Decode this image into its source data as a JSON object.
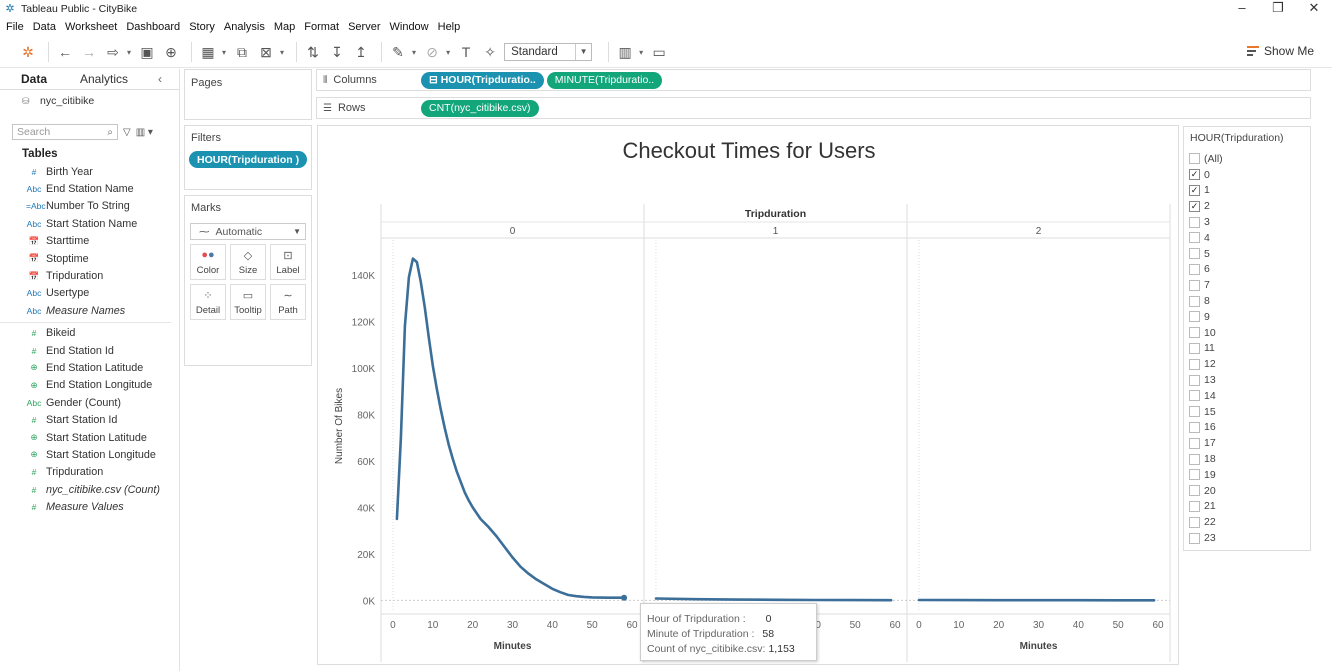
{
  "window": {
    "title": "Tableau Public - CityBike",
    "controls": [
      "–",
      "❐",
      "✕"
    ]
  },
  "menu": [
    "File",
    "Data",
    "Worksheet",
    "Dashboard",
    "Story",
    "Analysis",
    "Map",
    "Format",
    "Server",
    "Window",
    "Help"
  ],
  "toolbar": {
    "fit_value": "Standard",
    "show_me_label": "Show Me"
  },
  "data_panel": {
    "tab_data": "Data",
    "tab_analytics": "Analytics",
    "datasource": "nyc_citibike",
    "search_placeholder": "Search",
    "tables_heading": "Tables",
    "dimensions": [
      {
        "icon": "#",
        "name": "Birth Year",
        "type": "dim"
      },
      {
        "icon": "Abc",
        "name": "End Station Name",
        "type": "dim"
      },
      {
        "icon": "=Abc",
        "name": "Number To String",
        "type": "dim"
      },
      {
        "icon": "Abc",
        "name": "Start Station Name",
        "type": "dim"
      },
      {
        "icon": "📅",
        "name": "Starttime",
        "type": "dim"
      },
      {
        "icon": "📅",
        "name": "Stoptime",
        "type": "dim"
      },
      {
        "icon": "📅",
        "name": "Tripduration",
        "type": "dim"
      },
      {
        "icon": "Abc",
        "name": "Usertype",
        "type": "dim"
      },
      {
        "icon": "Abc",
        "name": "Measure Names",
        "type": "dim",
        "italic": true
      }
    ],
    "measures": [
      {
        "icon": "#",
        "name": "Bikeid",
        "type": "mea"
      },
      {
        "icon": "#",
        "name": "End Station Id",
        "type": "mea"
      },
      {
        "icon": "⊕",
        "name": "End Station Latitude",
        "type": "mea"
      },
      {
        "icon": "⊕",
        "name": "End Station Longitude",
        "type": "mea"
      },
      {
        "icon": "Abc",
        "name": "Gender (Count)",
        "type": "mea"
      },
      {
        "icon": "#",
        "name": "Start Station Id",
        "type": "mea"
      },
      {
        "icon": "⊕",
        "name": "Start Station Latitude",
        "type": "mea"
      },
      {
        "icon": "⊕",
        "name": "Start Station Longitude",
        "type": "mea"
      },
      {
        "icon": "#",
        "name": "Tripduration",
        "type": "mea"
      },
      {
        "icon": "#",
        "name": "nyc_citibike.csv (Count)",
        "type": "mea",
        "italic": true
      },
      {
        "icon": "#",
        "name": "Measure Values",
        "type": "mea",
        "italic": true
      }
    ]
  },
  "cards": {
    "pages_title": "Pages",
    "filters_title": "Filters",
    "filter_pill": "HOUR(Tripduration )",
    "marks_title": "Marks",
    "marks_type": "Automatic",
    "mark_buttons": [
      {
        "name": "color",
        "label": "Color"
      },
      {
        "name": "size",
        "label": "Size"
      },
      {
        "name": "label",
        "label": "Label"
      },
      {
        "name": "detail",
        "label": "Detail"
      },
      {
        "name": "tooltip",
        "label": "Tooltip"
      },
      {
        "name": "path",
        "label": "Path"
      }
    ]
  },
  "shelves": {
    "columns_label": "Columns",
    "rows_label": "Rows",
    "columns_pills": [
      "⊟ HOUR(Tripduratio..",
      "MINUTE(Tripduratio.."
    ],
    "rows_pills": [
      "CNT(nyc_citibike.csv)"
    ]
  },
  "chart_data": {
    "type": "line",
    "title": "Checkout Times for Users",
    "header_title": "Tripduration",
    "panes": [
      "0",
      "1",
      "2"
    ],
    "xlabel": "Minutes",
    "ylabel": "Number Of Bikes",
    "x_ticks": [
      0,
      10,
      20,
      30,
      40,
      50,
      60
    ],
    "xlim": [
      -3,
      63
    ],
    "y_ticks": [
      0,
      20000,
      40000,
      60000,
      80000,
      100000,
      120000,
      140000
    ],
    "y_tick_labels": [
      "0K",
      "20K",
      "40K",
      "60K",
      "80K",
      "100K",
      "120K",
      "140K"
    ],
    "ylim": [
      -5000,
      155000
    ],
    "line_color": "#3b6e98",
    "series": [
      {
        "pane": "0",
        "x": [
          1,
          2,
          3,
          4,
          5,
          6,
          7,
          8,
          9,
          10,
          11,
          12,
          13,
          14,
          15,
          16,
          17,
          18,
          19,
          20,
          22,
          24,
          26,
          28,
          30,
          32,
          34,
          36,
          38,
          40,
          42,
          44,
          46,
          48,
          50,
          52,
          54,
          56,
          58
        ],
        "y": [
          35000,
          70000,
          118000,
          139000,
          147000,
          145500,
          137000,
          126000,
          113000,
          101000,
          91000,
          82000,
          74000,
          67000,
          61000,
          55500,
          51000,
          46500,
          43000,
          40000,
          35000,
          31500,
          27500,
          23000,
          18500,
          14500,
          11500,
          9000,
          7000,
          5000,
          3500,
          2300,
          1800,
          1500,
          1300,
          1200,
          1150,
          1130,
          1153
        ]
      },
      {
        "pane": "1",
        "x": [
          0,
          10,
          20,
          30,
          40,
          50,
          59
        ],
        "y": [
          800,
          500,
          350,
          250,
          180,
          120,
          80
        ]
      },
      {
        "pane": "2",
        "x": [
          0,
          10,
          20,
          30,
          40,
          50,
          59
        ],
        "y": [
          150,
          110,
          90,
          70,
          60,
          50,
          40
        ]
      }
    ]
  },
  "tooltip": {
    "hour_label": "Hour of Tripduration :",
    "hour_value": "0",
    "minute_label": "Minute of Tripduration :",
    "minute_value": "58",
    "count_label": "Count of nyc_citibike.csv:",
    "count_value": "1,153"
  },
  "filter_card": {
    "title": "HOUR(Tripduration)",
    "items": [
      {
        "label": "(All)",
        "checked": false
      },
      {
        "label": "0",
        "checked": true
      },
      {
        "label": "1",
        "checked": true
      },
      {
        "label": "2",
        "checked": true
      },
      {
        "label": "3",
        "checked": false
      },
      {
        "label": "4",
        "checked": false
      },
      {
        "label": "5",
        "checked": false
      },
      {
        "label": "6",
        "checked": false
      },
      {
        "label": "7",
        "checked": false
      },
      {
        "label": "8",
        "checked": false
      },
      {
        "label": "9",
        "checked": false
      },
      {
        "label": "10",
        "checked": false
      },
      {
        "label": "11",
        "checked": false
      },
      {
        "label": "12",
        "checked": false
      },
      {
        "label": "13",
        "checked": false
      },
      {
        "label": "14",
        "checked": false
      },
      {
        "label": "15",
        "checked": false
      },
      {
        "label": "16",
        "checked": false
      },
      {
        "label": "17",
        "checked": false
      },
      {
        "label": "18",
        "checked": false
      },
      {
        "label": "19",
        "checked": false
      },
      {
        "label": "20",
        "checked": false
      },
      {
        "label": "21",
        "checked": false
      },
      {
        "label": "22",
        "checked": false
      },
      {
        "label": "23",
        "checked": false
      }
    ]
  }
}
